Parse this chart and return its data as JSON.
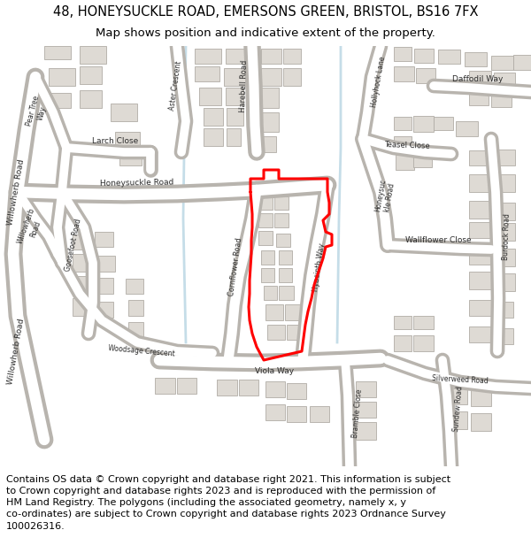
{
  "title_line1": "48, HONEYSUCKLE ROAD, EMERSONS GREEN, BRISTOL, BS16 7FX",
  "title_line2": "Map shows position and indicative extent of the property.",
  "footer_text": "Contains OS data © Crown copyright and database right 2021. This information is subject to Crown copyright and database rights 2023 and is reproduced with the permission of HM Land Registry. The polygons (including the associated geometry, namely x, y co-ordinates) are subject to Crown copyright and database rights 2023 Ordnance Survey 100026316.",
  "bg_color": "#ffffff",
  "map_bg": "#f7f5f2",
  "road_color": "#ffffff",
  "road_outline": "#b8b4ae",
  "building_color": "#dedad4",
  "building_outline": "#b0aca6",
  "water_color": "#c5dde8",
  "highlight_color": "#ff0000",
  "text_color": "#2a2a2a",
  "title_fontsize": 10.5,
  "subtitle_fontsize": 9.5,
  "footer_fontsize": 8.0,
  "label_fontsize": 6.0
}
